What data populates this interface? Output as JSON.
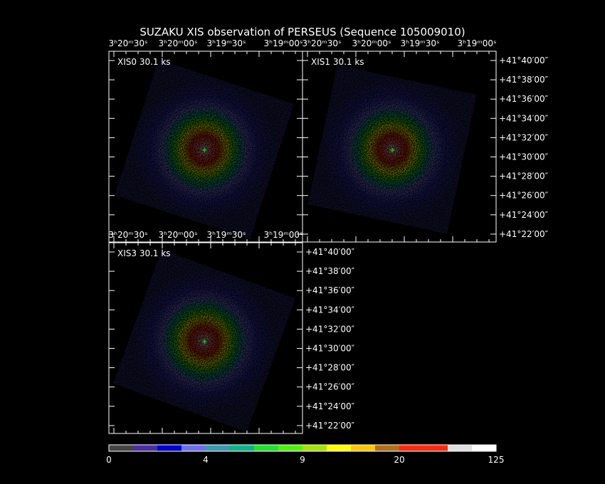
{
  "title": "SUZAKU XIS observation of PERSEUS  (Sequence 105009010)",
  "panels": [
    {
      "label": "XIS0 30.1 ks",
      "ra_ticks": [
        "3ʰ20ᵐ30ˢ",
        "3ʰ20ᵐ00ˢ",
        "3ʰ19ᵐ30ˢ",
        "3ʰ19ᵐ00ˢ"
      ]
    },
    {
      "label": "XIS1 30.1 ks",
      "ra_ticks": [
        "3ʰ20ᵐ30ˢ",
        "3ʰ20ᵐ00ˢ",
        "3ʰ19ᵐ30ˢ",
        "3ʰ19ᵐ00ˢ"
      ],
      "dec_ticks": [
        "+41°40′00″",
        "+41°38′00″",
        "+41°36′00″",
        "+41°34′00″",
        "+41°32′00″",
        "+41°30′00″",
        "+41°28′00″",
        "+41°26′00″",
        "+41°24′00″",
        "+41°22′00″"
      ]
    },
    {
      "label": "XIS3 30.1 ks",
      "ra_ticks": [
        "3ʰ20ᵐ30ˢ",
        "3ʰ20ᵐ00ˢ",
        "3ʰ19ᵐ30ˢ",
        "3ʰ19ᵐ00ˢ"
      ],
      "dec_ticks": [
        "+41°40′00″",
        "+41°38′00″",
        "+41°36′00″",
        "+41°34′00″",
        "+41°32′00″",
        "+41°30′00″",
        "+41°28′00″",
        "+41°26′00″",
        "+41°24′00″",
        "+41°22′00″"
      ]
    }
  ],
  "colorbar": {
    "colors": [
      "#444444",
      "#4b2fa0",
      "#0000cc",
      "#6f6fef",
      "#3a9ab0",
      "#10b08a",
      "#20e030",
      "#50f010",
      "#a8e000",
      "#ffff00",
      "#f8c800",
      "#b07018",
      "#ff2a10",
      "#ff2a10",
      "#e0e0e0",
      "#ffffff"
    ],
    "labels": [
      "0",
      "4",
      "9",
      "20",
      "125"
    ]
  }
}
